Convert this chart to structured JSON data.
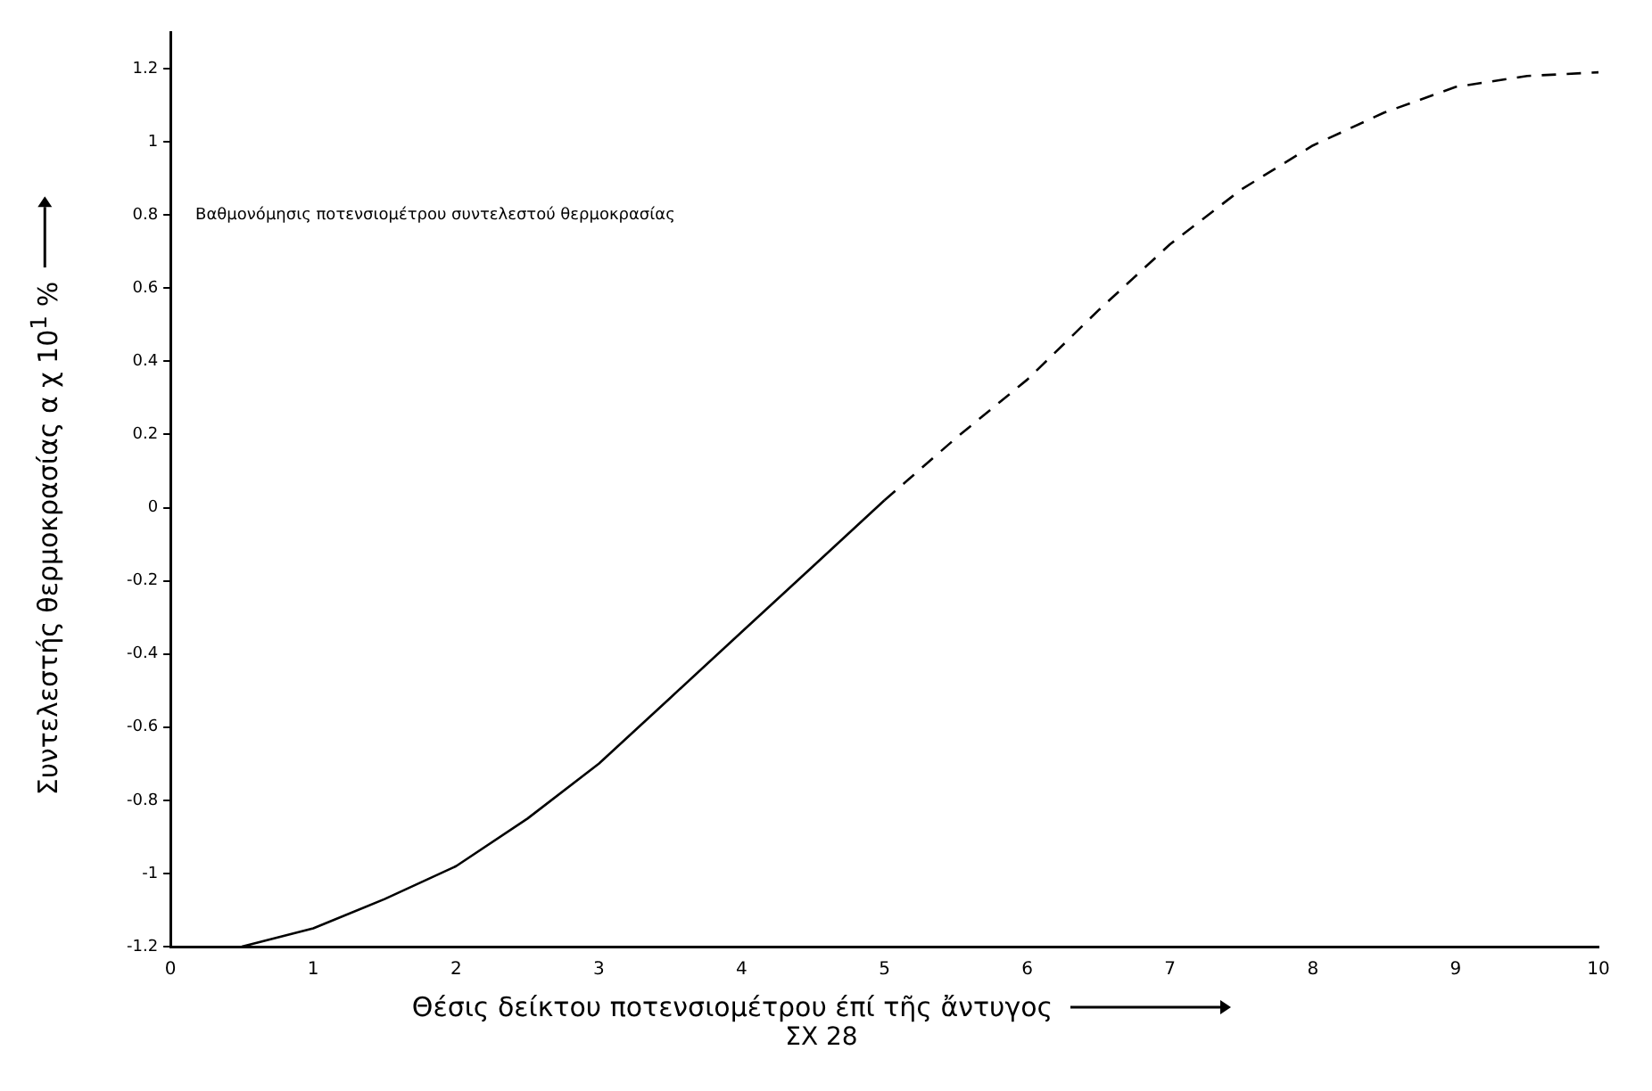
{
  "chart_data": {
    "type": "line",
    "xlabel": "Θέσις δείκτου ποτενσιομέτρου έπί τῆς ἄντυγος",
    "ylabel": "Συντελεστής θερμοκρασίας α χ 10$^{1}$ %",
    "annotations": [
      "Βαθμονόμησις ποτενσιομέτρου συντελεστού θερμοκρασίας",
      "ΣΧ 28"
    ],
    "xlim": [
      0,
      10
    ],
    "xticks": [
      0,
      1,
      2,
      3,
      4,
      5,
      6,
      7,
      8,
      9,
      10
    ],
    "ylim": [
      -1.2,
      1.3
    ],
    "yticks": [
      1.2,
      1,
      0.8,
      0.6,
      0.4,
      0.2,
      0,
      -0.2,
      -0.4,
      -0.6,
      -0.8,
      -1,
      -1.2
    ],
    "grid": false,
    "legend": false,
    "marker": "none",
    "series": [
      {
        "color": "#000000",
        "line_style": "solid",
        "x": [
          0.5,
          1,
          1.5,
          2,
          2.5,
          3,
          3.5,
          4,
          4.5,
          5
        ],
        "values": [
          -1.2,
          -1.15,
          -1.07,
          -0.98,
          -0.85,
          -0.7,
          -0.52,
          -0.34,
          -0.16,
          0.02
        ]
      },
      {
        "color": "#000000",
        "line_style": "dashed",
        "x": [
          5,
          5.5,
          6,
          6.5,
          7,
          7.5,
          8,
          8.5,
          9,
          9.5,
          10
        ],
        "values": [
          0.02,
          0.19,
          0.35,
          0.54,
          0.72,
          0.87,
          0.99,
          1.08,
          1.15,
          1.18,
          1.19
        ]
      }
    ]
  }
}
